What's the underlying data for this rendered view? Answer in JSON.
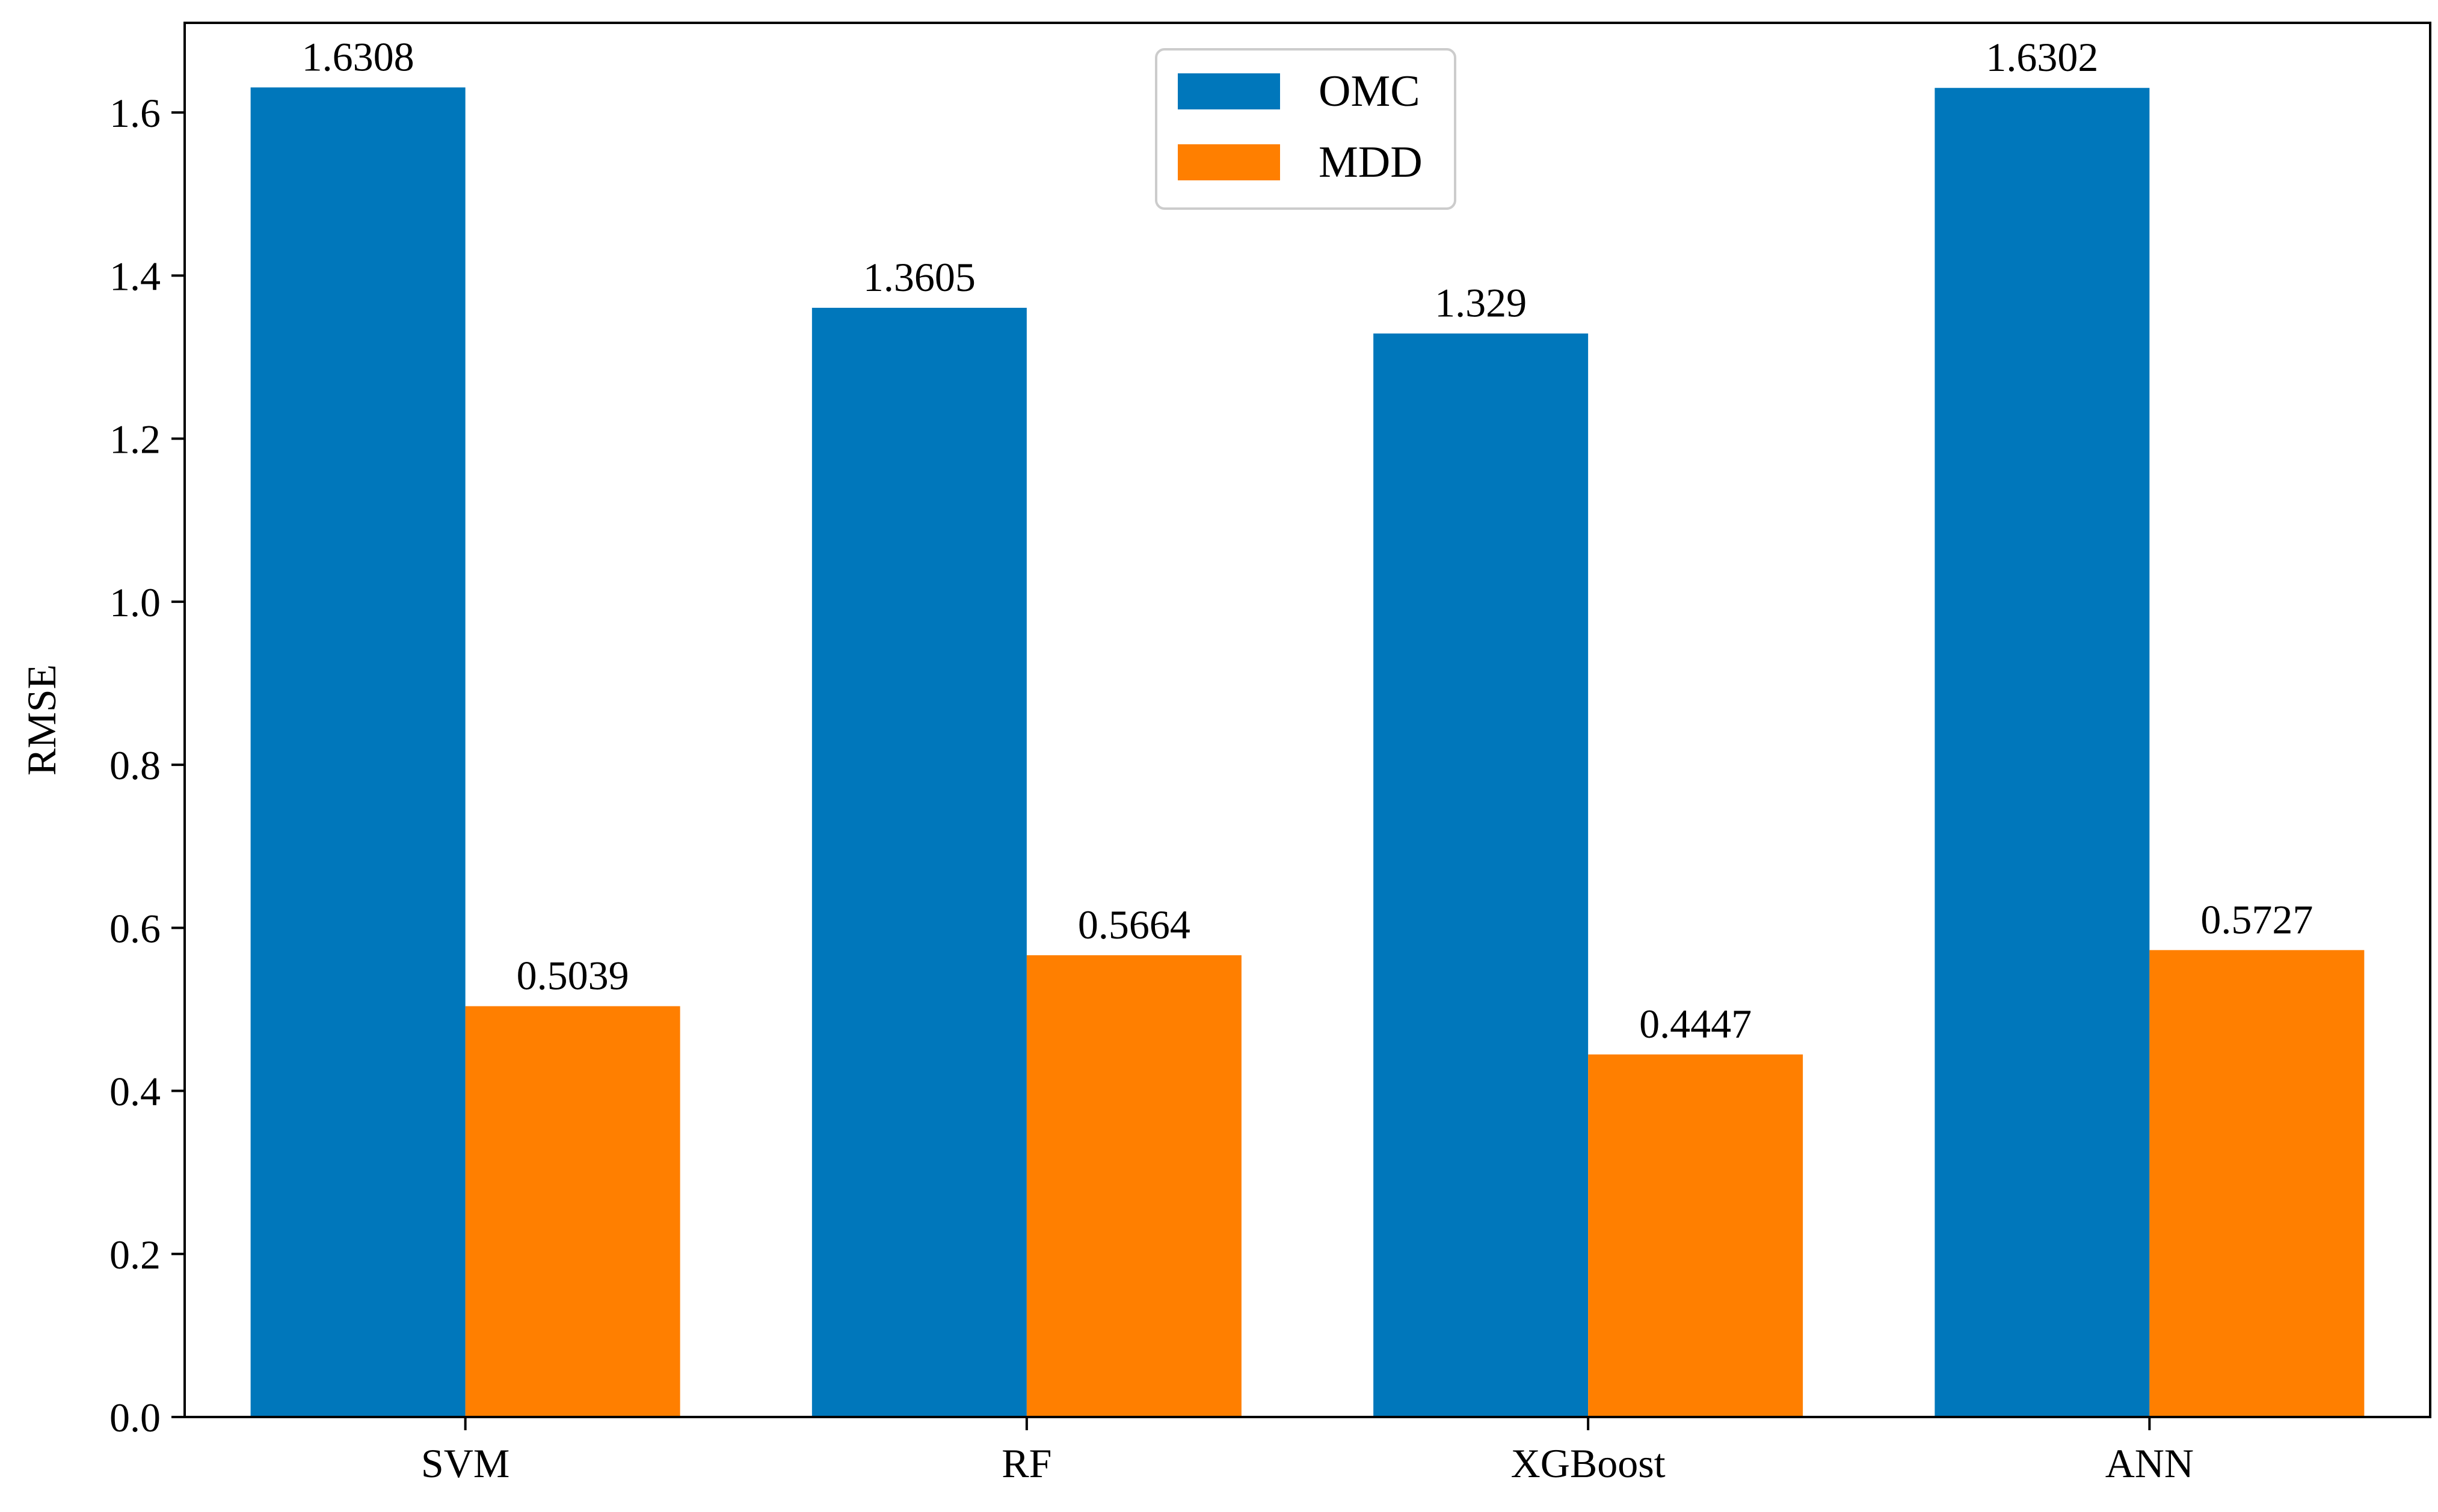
{
  "chart_data": {
    "type": "bar",
    "title": "",
    "xlabel": "",
    "ylabel": "RMSE",
    "categories": [
      "SVM",
      "RF",
      "XGBoost",
      "ANN"
    ],
    "series": [
      {
        "name": "OMC",
        "color": "#0077bb",
        "values": [
          1.6308,
          1.3605,
          1.329,
          1.6302
        ],
        "labels": [
          "1.6308",
          "1.3605",
          "1.329",
          "1.6302"
        ]
      },
      {
        "name": "MDD",
        "color": "#ff7f00",
        "values": [
          0.5039,
          0.5664,
          0.4447,
          0.5727
        ],
        "labels": [
          "0.5039",
          "0.5664",
          "0.4447",
          "0.5727"
        ]
      }
    ],
    "ylim": [
      0,
      1.71
    ],
    "yticks": [
      "0.0",
      "0.2",
      "0.4",
      "0.6",
      "0.8",
      "1.0",
      "1.2",
      "1.4",
      "1.6"
    ],
    "grid": false,
    "legend_position": "top-center"
  }
}
